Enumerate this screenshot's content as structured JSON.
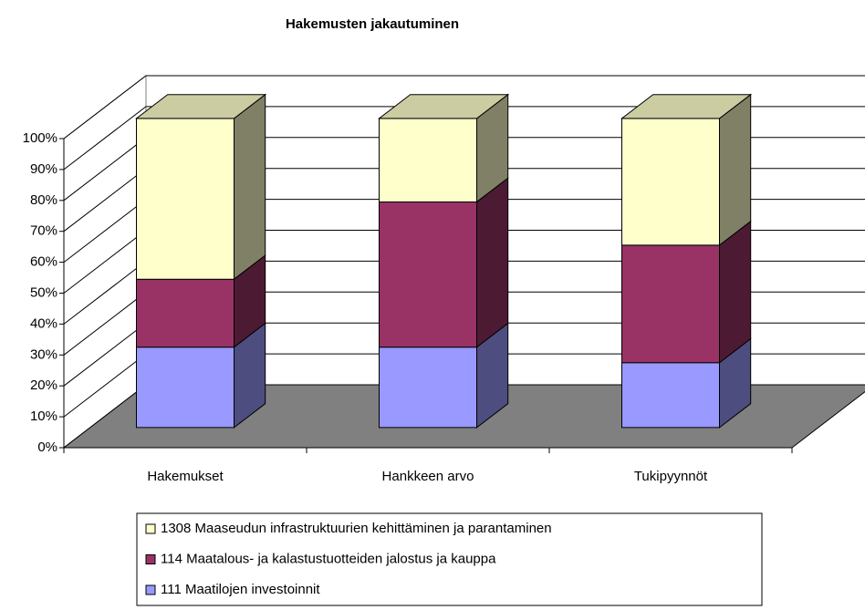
{
  "chart_data": {
    "type": "bar3d_stacked",
    "title": "Hakemusten jakautuminen",
    "categories": [
      "Hakemukset",
      "Hankkeen arvo",
      "Tukipyynnöt"
    ],
    "series": [
      {
        "name": "111 Maatilojen investoinnit",
        "color": "#9999ff",
        "values": [
          26,
          26,
          21
        ]
      },
      {
        "name": "114 Maatalous- ja kalastustuotteiden jalostus ja kauppa",
        "color": "#993366",
        "values": [
          22,
          47,
          38
        ]
      },
      {
        "name": "1308 Maaseudun infrastruktuurien kehittäminen ja parantaminen",
        "color": "#ffffcc",
        "values": [
          52,
          27,
          41
        ]
      }
    ],
    "ylim": [
      0,
      100
    ],
    "yticks": [
      {
        "value": 0,
        "label": "0%"
      },
      {
        "value": 10,
        "label": "10%"
      },
      {
        "value": 20,
        "label": "20%"
      },
      {
        "value": 30,
        "label": "30%"
      },
      {
        "value": 40,
        "label": "40%"
      },
      {
        "value": 50,
        "label": "50%"
      },
      {
        "value": 60,
        "label": "60%"
      },
      {
        "value": 70,
        "label": "70%"
      },
      {
        "value": 80,
        "label": "80%"
      },
      {
        "value": 90,
        "label": "90%"
      },
      {
        "value": 100,
        "label": "100%"
      }
    ],
    "grid": true,
    "legend": "bottom"
  }
}
